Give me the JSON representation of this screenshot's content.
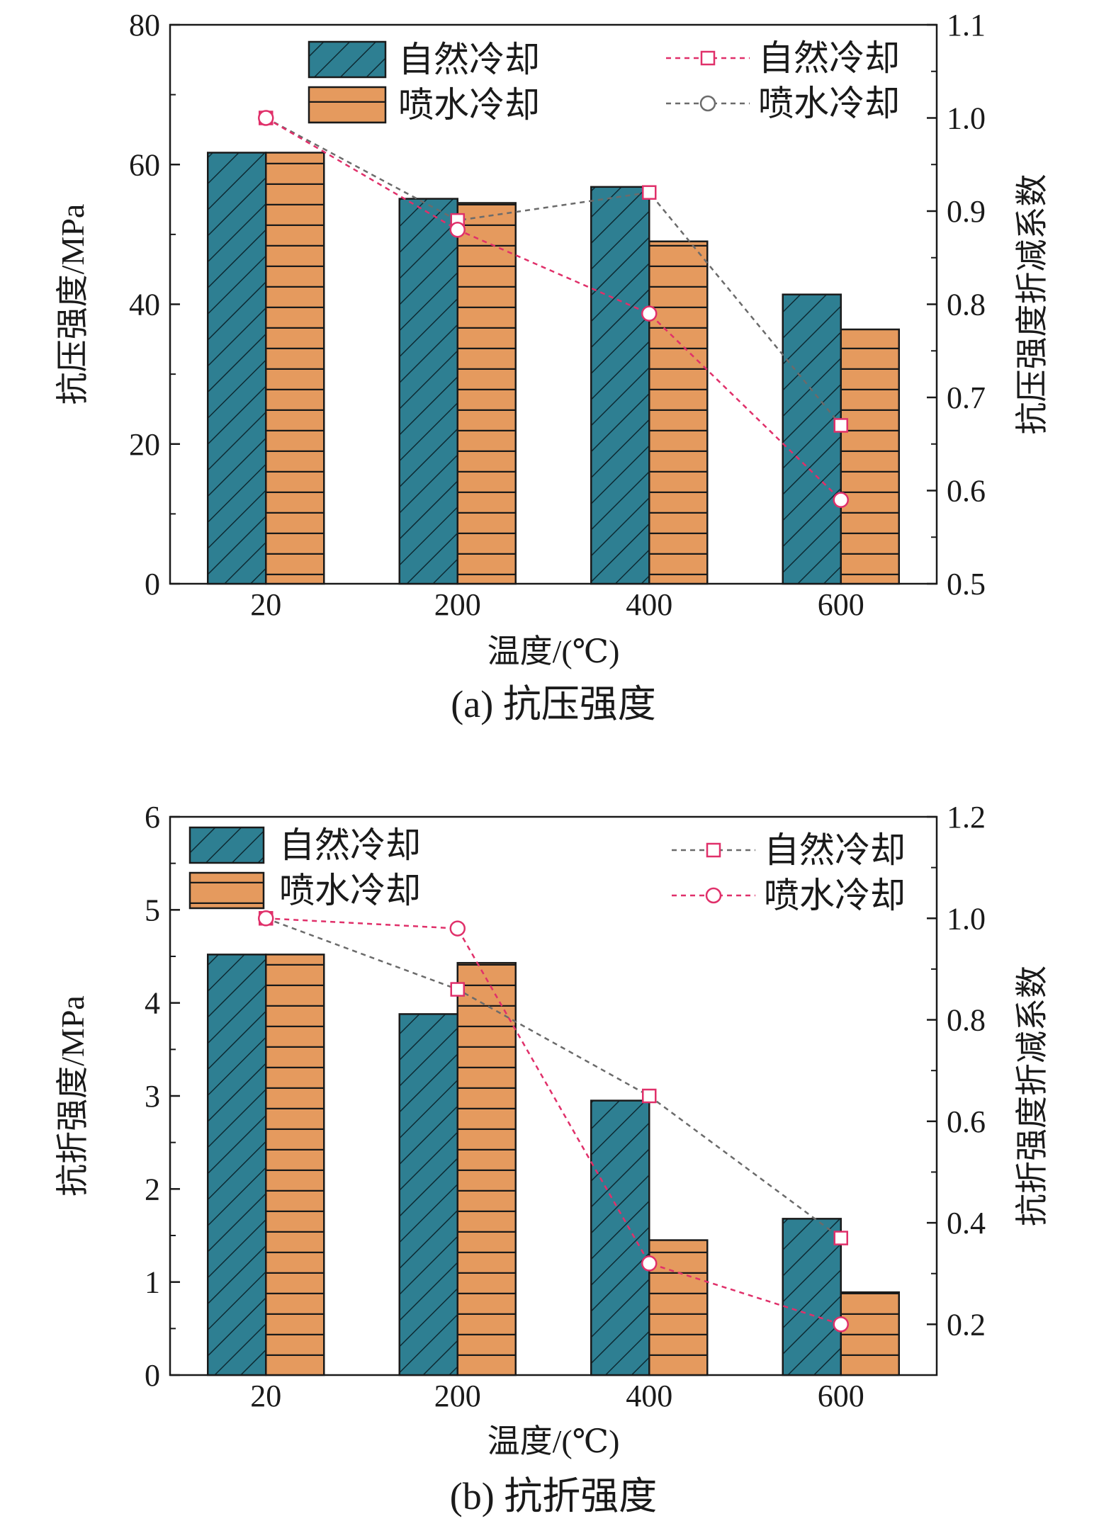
{
  "colors": {
    "natural_bar": "#2e7f92",
    "spray_bar": "#e59a5e",
    "natural_line": "#6b6b6b",
    "spray_line": "#e0306a",
    "natural_marker": "#e0306a",
    "spray_marker": "#e0306a"
  },
  "chart_data": [
    {
      "type": "bar",
      "caption": "(a) 抗压强度",
      "xlabel": "温度/(℃)",
      "ylabel": "抗压强度/MPa",
      "y2label": "抗压强度折减系数",
      "categories": [
        "20",
        "200",
        "400",
        "600"
      ],
      "ylim": [
        0,
        80
      ],
      "yticks": [
        "0",
        "20",
        "40",
        "60",
        "80"
      ],
      "y2lim": [
        0.5,
        1.1
      ],
      "y2ticks": [
        "0.5",
        "0.6",
        "0.7",
        "0.8",
        "0.9",
        "1.0",
        "1.1"
      ],
      "series": [
        {
          "name": "自然冷却",
          "kind": "bar",
          "axis": "left",
          "values": [
            61.7,
            55.1,
            56.8,
            41.4
          ]
        },
        {
          "name": "喷水冷却",
          "kind": "bar",
          "axis": "left",
          "values": [
            61.7,
            54.5,
            49.0,
            36.4
          ]
        },
        {
          "name": "自然冷却",
          "kind": "line",
          "marker": "square",
          "axis": "right",
          "values": [
            1.0,
            0.89,
            0.92,
            0.67
          ]
        },
        {
          "name": "喷水冷却",
          "kind": "line",
          "marker": "circle",
          "axis": "right",
          "values": [
            1.0,
            0.88,
            0.79,
            0.59
          ]
        }
      ],
      "legend": {
        "left_position": "top-left",
        "right_position": "top-right"
      }
    },
    {
      "type": "bar",
      "caption": "(b) 抗折强度",
      "xlabel": "温度/(℃)",
      "ylabel": "抗折强度/MPa",
      "y2label": "抗折强度折减系数",
      "categories": [
        "20",
        "200",
        "400",
        "600"
      ],
      "ylim": [
        0,
        6
      ],
      "yticks": [
        "0",
        "1",
        "2",
        "3",
        "4",
        "5",
        "6"
      ],
      "y2lim": [
        0.1,
        1.2
      ],
      "y2ticks": [
        "0.2",
        "0.4",
        "0.6",
        "0.8",
        "1.0",
        "1.2"
      ],
      "series": [
        {
          "name": "自然冷却",
          "kind": "bar",
          "axis": "left",
          "values": [
            4.52,
            3.88,
            2.95,
            1.68
          ]
        },
        {
          "name": "喷水冷却",
          "kind": "bar",
          "axis": "left",
          "values": [
            4.52,
            4.43,
            1.45,
            0.89
          ]
        },
        {
          "name": "自然冷却",
          "kind": "line",
          "marker": "square",
          "axis": "right",
          "values": [
            1.0,
            0.86,
            0.65,
            0.37
          ]
        },
        {
          "name": "喷水冷却",
          "kind": "line",
          "marker": "circle",
          "axis": "right",
          "values": [
            1.0,
            0.98,
            0.32,
            0.2
          ]
        }
      ],
      "legend": {
        "left_position": "top-left",
        "right_position": "top-right"
      }
    }
  ]
}
